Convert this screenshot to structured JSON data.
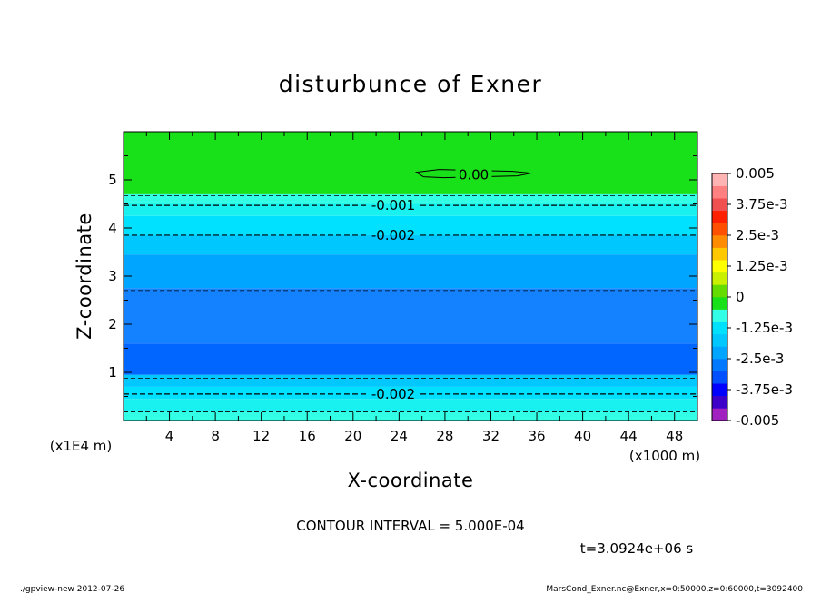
{
  "chart_data": {
    "type": "contour",
    "title": "disturbunce of Exner",
    "xlabel": "X-coordinate",
    "ylabel": "Z-coordinate",
    "x_unit_label": "(x1000 m)",
    "y_unit_label": "(x1E4 m)",
    "xlim": [
      0,
      50
    ],
    "ylim": [
      0,
      6
    ],
    "x_ticks": [
      4,
      8,
      12,
      16,
      20,
      24,
      28,
      32,
      36,
      40,
      44,
      48
    ],
    "y_ticks": [
      1,
      2,
      3,
      4,
      5
    ],
    "contour_interval_text": "CONTOUR INTERVAL = 5.000E-04",
    "time_text": "t=3.0924e+06 s",
    "bands": [
      {
        "z0": 0.0,
        "z1": 0.2,
        "color": "#33ffe6"
      },
      {
        "z0": 0.2,
        "z1": 0.45,
        "color": "#19f0f0"
      },
      {
        "z0": 0.45,
        "z1": 0.7,
        "color": "#00e1ff"
      },
      {
        "z0": 0.7,
        "z1": 0.95,
        "color": "#00c8ff"
      },
      {
        "z0": 0.95,
        "z1": 1.6,
        "color": "#0066ff"
      },
      {
        "z0": 1.6,
        "z1": 2.75,
        "color": "#1482ff"
      },
      {
        "z0": 2.75,
        "z1": 3.45,
        "color": "#00a5ff"
      },
      {
        "z0": 3.45,
        "z1": 3.85,
        "color": "#00c8ff"
      },
      {
        "z0": 3.85,
        "z1": 4.25,
        "color": "#00e1ff"
      },
      {
        "z0": 4.25,
        "z1": 4.5,
        "color": "#19f0f0"
      },
      {
        "z0": 4.5,
        "z1": 4.7,
        "color": "#33ffe6"
      },
      {
        "z0": 4.7,
        "z1": 6.0,
        "color": "#19e119"
      }
    ],
    "contours": [
      {
        "z": 0.18,
        "value": "",
        "dash": true
      },
      {
        "z": 0.55,
        "value": "-0.002",
        "label_x": 23.5,
        "dash": true
      },
      {
        "z": 0.88,
        "value": "",
        "dash": true
      },
      {
        "z": 2.7,
        "value": "",
        "dash": true
      },
      {
        "z": 3.85,
        "value": "-0.002",
        "label_x": 23.5,
        "dash": true
      },
      {
        "z": 4.47,
        "value": "-0.001",
        "label_x": 23.5,
        "dash": true
      },
      {
        "z": 4.67,
        "value": "",
        "dash": true
      }
    ],
    "closed_contour": {
      "value": "0.00",
      "x0": 25.5,
      "x1": 35.5,
      "z": 5.12,
      "label_x": 30.5
    },
    "colorbar": {
      "colors": [
        "#a020c0",
        "#3c00c8",
        "#0000ff",
        "#0050ff",
        "#0078ff",
        "#00a5ff",
        "#00c8ff",
        "#00e1ff",
        "#33ffe6",
        "#19e119",
        "#64dc00",
        "#c8f000",
        "#ffff00",
        "#ffc800",
        "#ff8c00",
        "#ff5000",
        "#ff2000",
        "#f05050",
        "#ff8080",
        "#ffb4b4"
      ],
      "labels": [
        "0.005",
        "3.75e-3",
        "2.5e-3",
        "1.25e-3",
        "0",
        "-1.25e-3",
        "-2.5e-3",
        "-3.75e-3",
        "-0.005"
      ]
    }
  },
  "footer": {
    "left": "./gpview-new  2012-07-26",
    "right": "MarsCond_Exner.nc@Exner,x=0:50000,z=0:60000,t=3092400"
  }
}
